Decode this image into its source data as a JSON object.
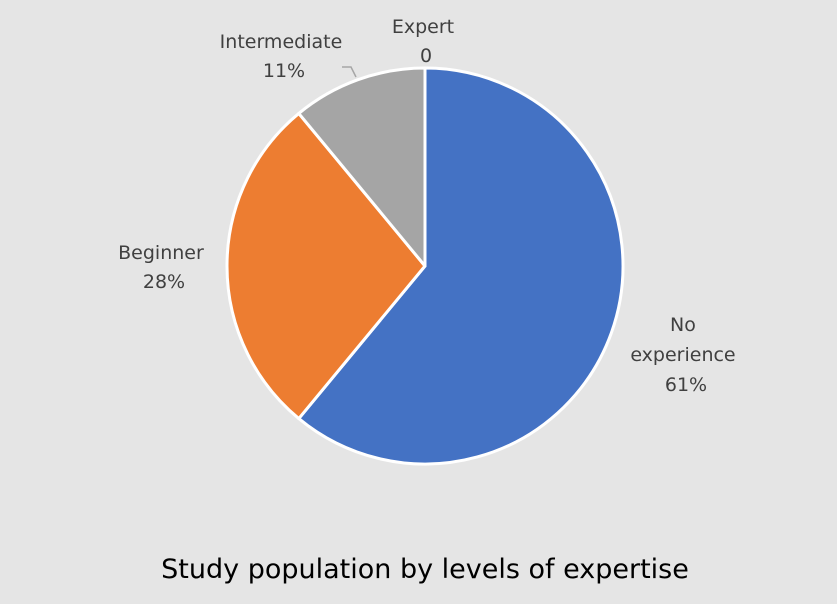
{
  "chart_data": {
    "type": "pie",
    "title": "Study population by levels of expertise",
    "slices": [
      {
        "label": "No experience",
        "value": 61,
        "display": "61%",
        "color": "#4472c4"
      },
      {
        "label": "Beginner",
        "value": 28,
        "display": "28%",
        "color": "#ed7d31"
      },
      {
        "label": "Intermediate",
        "value": 11,
        "display": "11%",
        "color": "#a5a5a5"
      },
      {
        "label": "Expert",
        "value": 0,
        "display": "0",
        "color": "#ffc000"
      }
    ],
    "legend": "none"
  }
}
